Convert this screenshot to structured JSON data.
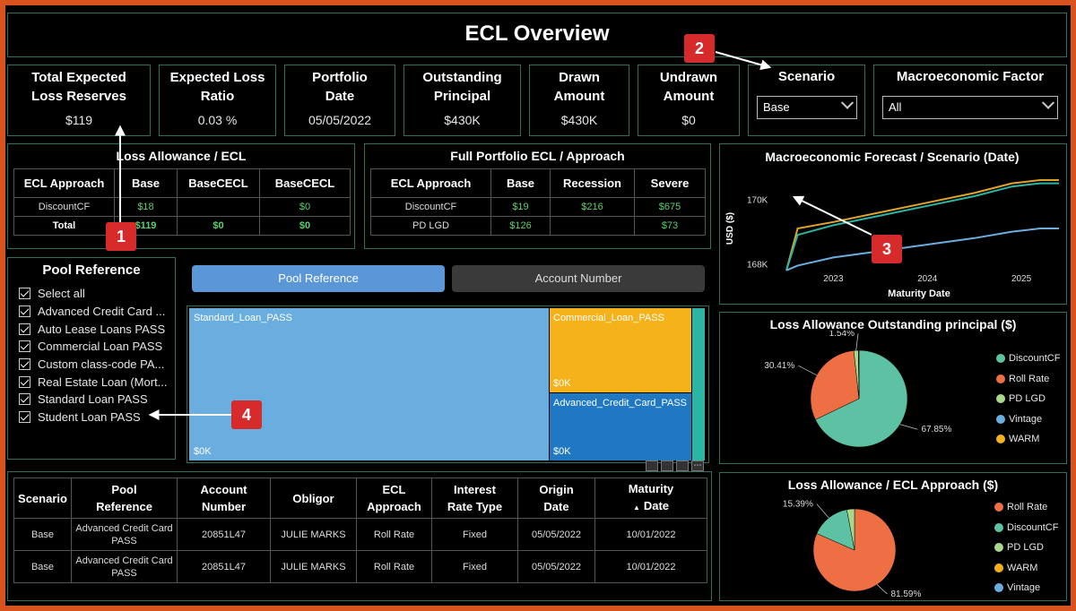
{
  "header": {
    "title": "ECL Overview"
  },
  "cards": [
    {
      "label_line1": "Total Expected",
      "label_line2": "Loss Reserves",
      "value": "$119"
    },
    {
      "label_line1": "Expected Loss",
      "label_line2": "Ratio",
      "value": "0.03 %"
    },
    {
      "label_line1": "Portfolio",
      "label_line2": "Date",
      "value": "05/05/2022"
    },
    {
      "label_line1": "Outstanding",
      "label_line2": "Principal",
      "value": "$430K"
    },
    {
      "label_line1": "Drawn",
      "label_line2": "Amount",
      "value": "$430K"
    },
    {
      "label_line1": "Undrawn",
      "label_line2": "Amount",
      "value": "$0"
    }
  ],
  "scenario": {
    "label": "Scenario",
    "value": "Base"
  },
  "macro_factor": {
    "label": "Macroeconomic Factor",
    "value": "All"
  },
  "loss_allowance_table": {
    "title": "Loss Allowance / ECL",
    "headers": [
      "ECL Approach",
      "Base",
      "BaseCECL",
      "BaseCECL"
    ],
    "rows": [
      [
        "DiscountCF",
        "$18",
        "",
        "$0"
      ],
      [
        "Total",
        "$119",
        "$0",
        "$0"
      ]
    ]
  },
  "full_portfolio_table": {
    "title": "Full Portfolio ECL / Approach",
    "headers": [
      "ECL Approach",
      "Base",
      "Recession",
      "Severe"
    ],
    "rows": [
      [
        "DiscountCF",
        "$19",
        "$216",
        "$675"
      ],
      [
        "PD LGD",
        "$126",
        "",
        "$73"
      ]
    ]
  },
  "pool_reference": {
    "title": "Pool Reference",
    "items": [
      "Select all",
      "Advanced Credit Card ...",
      "Auto Lease Loans PASS",
      "Commercial Loan PASS",
      "Custom class-code PA...",
      "Real Estate Loan (Mort...",
      "Standard Loan PASS",
      "Student Loan PASS"
    ]
  },
  "toggle": {
    "left": "Pool Reference",
    "right": "Account Number"
  },
  "treemap": {
    "tiles": [
      {
        "name": "Standard_Loan_PASS",
        "value_label": "$0K",
        "color": "#6aaee0"
      },
      {
        "name": "Commercial_Loan_PASS",
        "value_label": "$0K",
        "color": "#f5b21b"
      },
      {
        "name": "Advanced_Credit_Card_PASS",
        "value_label": "$0K",
        "color": "#1f78c1"
      }
    ]
  },
  "detail_table": {
    "headers": [
      [
        "Scenario",
        ""
      ],
      [
        "Pool",
        "Reference"
      ],
      [
        "Account",
        "Number"
      ],
      [
        "Obligor",
        ""
      ],
      [
        "ECL",
        "Approach"
      ],
      [
        "Interest",
        "Rate Type"
      ],
      [
        "Origin",
        "Date"
      ],
      [
        "Maturity",
        "Date"
      ]
    ],
    "rows": [
      [
        "Base",
        "Advanced Credit Card PASS",
        "20851L47",
        "JULIE MARKS",
        "Roll Rate",
        "Fixed",
        "05/05/2022",
        "10/01/2022"
      ],
      [
        "Base",
        "Advanced Credit Card PASS",
        "20851L47",
        "JULIE MARKS",
        "Roll Rate",
        "Fixed",
        "05/05/2022",
        "10/01/2022"
      ]
    ]
  },
  "annotations": [
    "1",
    "2",
    "3",
    "4"
  ],
  "chart_data": [
    {
      "type": "line",
      "title": "Macroeconomic Forecast / Scenario (Date)",
      "xlabel": "Maturity Date",
      "ylabel": "USD ($)",
      "x_ticks": [
        "2023",
        "2024",
        "2025"
      ],
      "y_ticks": [
        "168K",
        "170K"
      ],
      "x": [
        2022.5,
        2022.62,
        2023,
        2023.5,
        2024,
        2024.5,
        2024.9,
        2025.2,
        2025.4
      ],
      "ylim": [
        167.6,
        170.6
      ],
      "series": [
        {
          "values": [
            167.8,
            169.1,
            169.3,
            169.6,
            169.9,
            170.2,
            170.5,
            170.6,
            170.6
          ],
          "color": "#e0a526"
        },
        {
          "values": [
            167.8,
            168.9,
            169.2,
            169.5,
            169.8,
            170.1,
            170.4,
            170.5,
            170.5
          ],
          "color": "#2bb5a2"
        },
        {
          "values": [
            167.8,
            167.95,
            168.2,
            168.4,
            168.6,
            168.8,
            169.0,
            169.1,
            169.1
          ],
          "color": "#6aaee0"
        }
      ]
    },
    {
      "type": "pie",
      "title": "Loss Allowance Outstanding principal ($)",
      "slices": [
        {
          "name": "DiscountCF",
          "value": 67.85,
          "label": "67.85%",
          "color": "#5dc2a3"
        },
        {
          "name": "Roll Rate",
          "value": 30.41,
          "label": "30.41%",
          "color": "#ef6f45"
        },
        {
          "name": "PD LGD",
          "value": 1.54,
          "label": "1.54%",
          "color": "#a8d88c"
        },
        {
          "name": "Vintage",
          "value": 0.1,
          "label": "",
          "color": "#6aaee0"
        },
        {
          "name": "WARM",
          "value": 0.1,
          "label": "",
          "color": "#f5b21b"
        }
      ]
    },
    {
      "type": "pie",
      "title": "Loss Allowance / ECL Approach ($)",
      "slices": [
        {
          "name": "Roll Rate",
          "value": 81.59,
          "label": "81.59%",
          "color": "#ef6f45"
        },
        {
          "name": "DiscountCF",
          "value": 15.39,
          "label": "15.39%",
          "color": "#5dc2a3"
        },
        {
          "name": "PD LGD",
          "value": 3.02,
          "label": "",
          "color": "#a8d88c"
        },
        {
          "name": "WARM",
          "value": 0,
          "label": "",
          "color": "#f5b21b"
        },
        {
          "name": "Vintage",
          "value": 0,
          "label": "",
          "color": "#6aaee0"
        }
      ]
    }
  ]
}
